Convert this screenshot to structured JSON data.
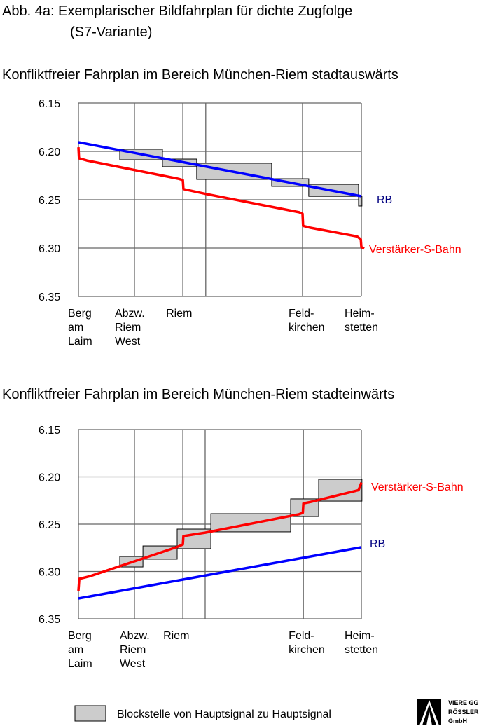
{
  "title_line1": "Abb. 4a: Exemplarischer Bildfahrplan für dichte Zugfolge",
  "title_line2": "(S7-Variante)",
  "legend_label": "Blockstelle von Hauptsignal zu Hauptsignal",
  "logo_text": [
    "VIERE GG",
    "RÖSSLER",
    "GmbH"
  ],
  "colors": {
    "rb": "#0000ff",
    "rb_label": "#000080",
    "sbahn": "#ff0000",
    "block_fill": "#cccccc",
    "grid": "#666666"
  },
  "chart_data": [
    {
      "type": "line",
      "title": "Konfliktfreier Fahrplan im Bereich München-Riem stadtauswärts",
      "xlabel": "",
      "ylabel": "",
      "y_ticks": [
        "6.15",
        "6.20",
        "6.25",
        "6.30",
        "6.35"
      ],
      "y_tick_values": [
        15,
        20,
        25,
        30,
        35
      ],
      "ylim": [
        15,
        35
      ],
      "xlim": [
        0,
        10
      ],
      "x_units": "approx. km from Berg am Laim",
      "grid": true,
      "stations": [
        {
          "lines": [
            "Berg",
            "am",
            "Laim"
          ],
          "x": 0
        },
        {
          "lines": [
            "Abzw.",
            "Riem",
            "West"
          ],
          "x": 1.98
        },
        {
          "lines": [
            "Riem"
          ],
          "x": 3.69
        },
        {
          "lines": [],
          "x": 4.5
        },
        {
          "lines": [
            "Feld-",
            "kirchen"
          ],
          "x": 7.92
        },
        {
          "lines": [
            "Heim-",
            "stetten"
          ],
          "x": 10
        }
      ],
      "series": [
        {
          "name": "RB",
          "color": "#0000ff",
          "points": [
            [
              0,
              19.06
            ],
            [
              10,
              24.64
            ]
          ]
        },
        {
          "name": "Verstärker-S-Bahn",
          "color": "#ff0000",
          "points": [
            [
              0,
              19.57
            ],
            [
              0.02,
              20.72
            ],
            [
              0.3,
              20.95
            ],
            [
              3.55,
              22.85
            ],
            [
              3.69,
              22.97
            ],
            [
              3.71,
              23.9
            ],
            [
              4.5,
              24.4
            ],
            [
              7.8,
              26.3
            ],
            [
              7.92,
              26.45
            ],
            [
              7.94,
              27.7
            ],
            [
              8.2,
              27.9
            ],
            [
              9.85,
              28.8
            ],
            [
              9.98,
              29.1
            ],
            [
              10,
              29.9
            ],
            [
              10.1,
              30.05
            ]
          ]
        }
      ],
      "blocks": [
        {
          "x": [
            1.46,
            2.97
          ],
          "t": [
            19.78,
            20.87
          ]
        },
        {
          "x": [
            2.97,
            4.18
          ],
          "t": [
            20.8,
            21.59
          ]
        },
        {
          "x": [
            4.18,
            6.83
          ],
          "t": [
            21.23,
            22.9
          ]
        },
        {
          "x": [
            6.83,
            8.14
          ],
          "t": [
            22.83,
            23.62
          ]
        },
        {
          "x": [
            8.14,
            9.9
          ],
          "t": [
            23.41,
            24.65
          ]
        },
        {
          "x": [
            9.9,
            10.02
          ],
          "t": [
            24.65,
            25.65
          ]
        }
      ]
    },
    {
      "type": "line",
      "title": "Konfliktfreier Fahrplan im Bereich München-Riem stadteinwärts",
      "xlabel": "",
      "ylabel": "",
      "y_ticks": [
        "6.15",
        "6.20",
        "6.25",
        "6.30",
        "6.35"
      ],
      "y_tick_values": [
        15,
        20,
        25,
        30,
        35
      ],
      "ylim": [
        15,
        35
      ],
      "xlim": [
        0,
        10
      ],
      "x_units": "approx. km from Berg am Laim",
      "grid": true,
      "stations": [
        {
          "lines": [
            "Berg",
            "am",
            "Laim"
          ],
          "x": 0
        },
        {
          "lines": [
            "Abzw.",
            "Riem",
            "West"
          ],
          "x": 1.98
        },
        {
          "lines": [
            "Riem"
          ],
          "x": 3.69
        },
        {
          "lines": [],
          "x": 4.48
        },
        {
          "lines": [
            "Feld-",
            "kirchen"
          ],
          "x": 7.95
        },
        {
          "lines": [
            "Heim-",
            "stetten"
          ],
          "x": 10
        }
      ],
      "series": [
        {
          "name": "RB",
          "color": "#0000ff",
          "points": [
            [
              0,
              32.85
            ],
            [
              10,
              27.44
            ]
          ]
        },
        {
          "name": "Verstärker-S-Bahn",
          "color": "#ff0000",
          "points": [
            [
              0,
              32.04
            ],
            [
              0.03,
              30.78
            ],
            [
              0.4,
              30.5
            ],
            [
              3.5,
              27.4
            ],
            [
              3.69,
              27.15
            ],
            [
              3.71,
              26.26
            ],
            [
              4.48,
              25.9
            ],
            [
              7.8,
              23.95
            ],
            [
              7.93,
              23.8
            ],
            [
              7.95,
              22.8
            ],
            [
              8.2,
              22.65
            ],
            [
              9.9,
              21.4
            ],
            [
              10,
              20.6
            ]
          ]
        }
      ],
      "blocks": [
        {
          "x": [
            1.46,
            2.28
          ],
          "t": [
            28.41,
            29.52
          ]
        },
        {
          "x": [
            2.28,
            3.49
          ],
          "t": [
            27.3,
            28.7
          ]
        },
        {
          "x": [
            3.49,
            4.68
          ],
          "t": [
            25.52,
            27.59
          ]
        },
        {
          "x": [
            4.68,
            7.5
          ],
          "t": [
            23.89,
            25.81
          ]
        },
        {
          "x": [
            7.5,
            8.49
          ],
          "t": [
            22.33,
            24.19
          ]
        },
        {
          "x": [
            8.49,
            10.02
          ],
          "t": [
            20.26,
            22.56
          ]
        }
      ]
    }
  ]
}
